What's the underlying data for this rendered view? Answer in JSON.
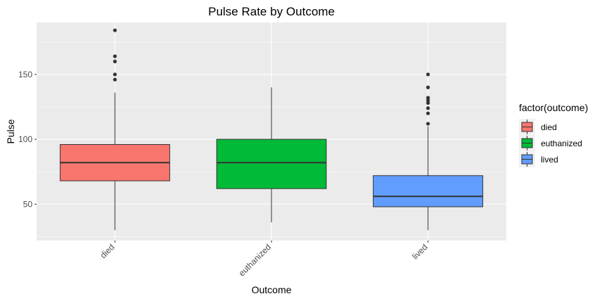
{
  "chart_data": {
    "type": "box",
    "title": "Pulse Rate by Outcome",
    "xlabel": "Outcome",
    "ylabel": "Pulse",
    "ylim": [
      22,
      190
    ],
    "yticks": [
      50,
      100,
      150
    ],
    "categories": [
      "died",
      "euthanized",
      "lived"
    ],
    "boxes": [
      {
        "category": "died",
        "fill": "#F8766D",
        "min": 30,
        "q1": 68,
        "median": 82,
        "q3": 96,
        "max": 136,
        "outliers": [
          146,
          150,
          160,
          164,
          184
        ]
      },
      {
        "category": "euthanized",
        "fill": "#00BA38",
        "min": 36,
        "q1": 62,
        "median": 82,
        "q3": 100,
        "max": 140,
        "outliers": []
      },
      {
        "category": "lived",
        "fill": "#619CFF",
        "min": 30,
        "q1": 48,
        "median": 56,
        "q3": 72,
        "max": 110,
        "outliers": [
          112,
          120,
          124,
          128,
          130,
          132,
          140,
          150
        ]
      }
    ],
    "legend": {
      "title": "factor(outcome)",
      "position": "right",
      "entries": [
        {
          "label": "died",
          "color": "#F8766D"
        },
        {
          "label": "euthanized",
          "color": "#00BA38"
        },
        {
          "label": "lived",
          "color": "#619CFF"
        }
      ]
    },
    "grid": true,
    "background": "#EBEBEB",
    "gridColor": "#FFFFFF"
  }
}
